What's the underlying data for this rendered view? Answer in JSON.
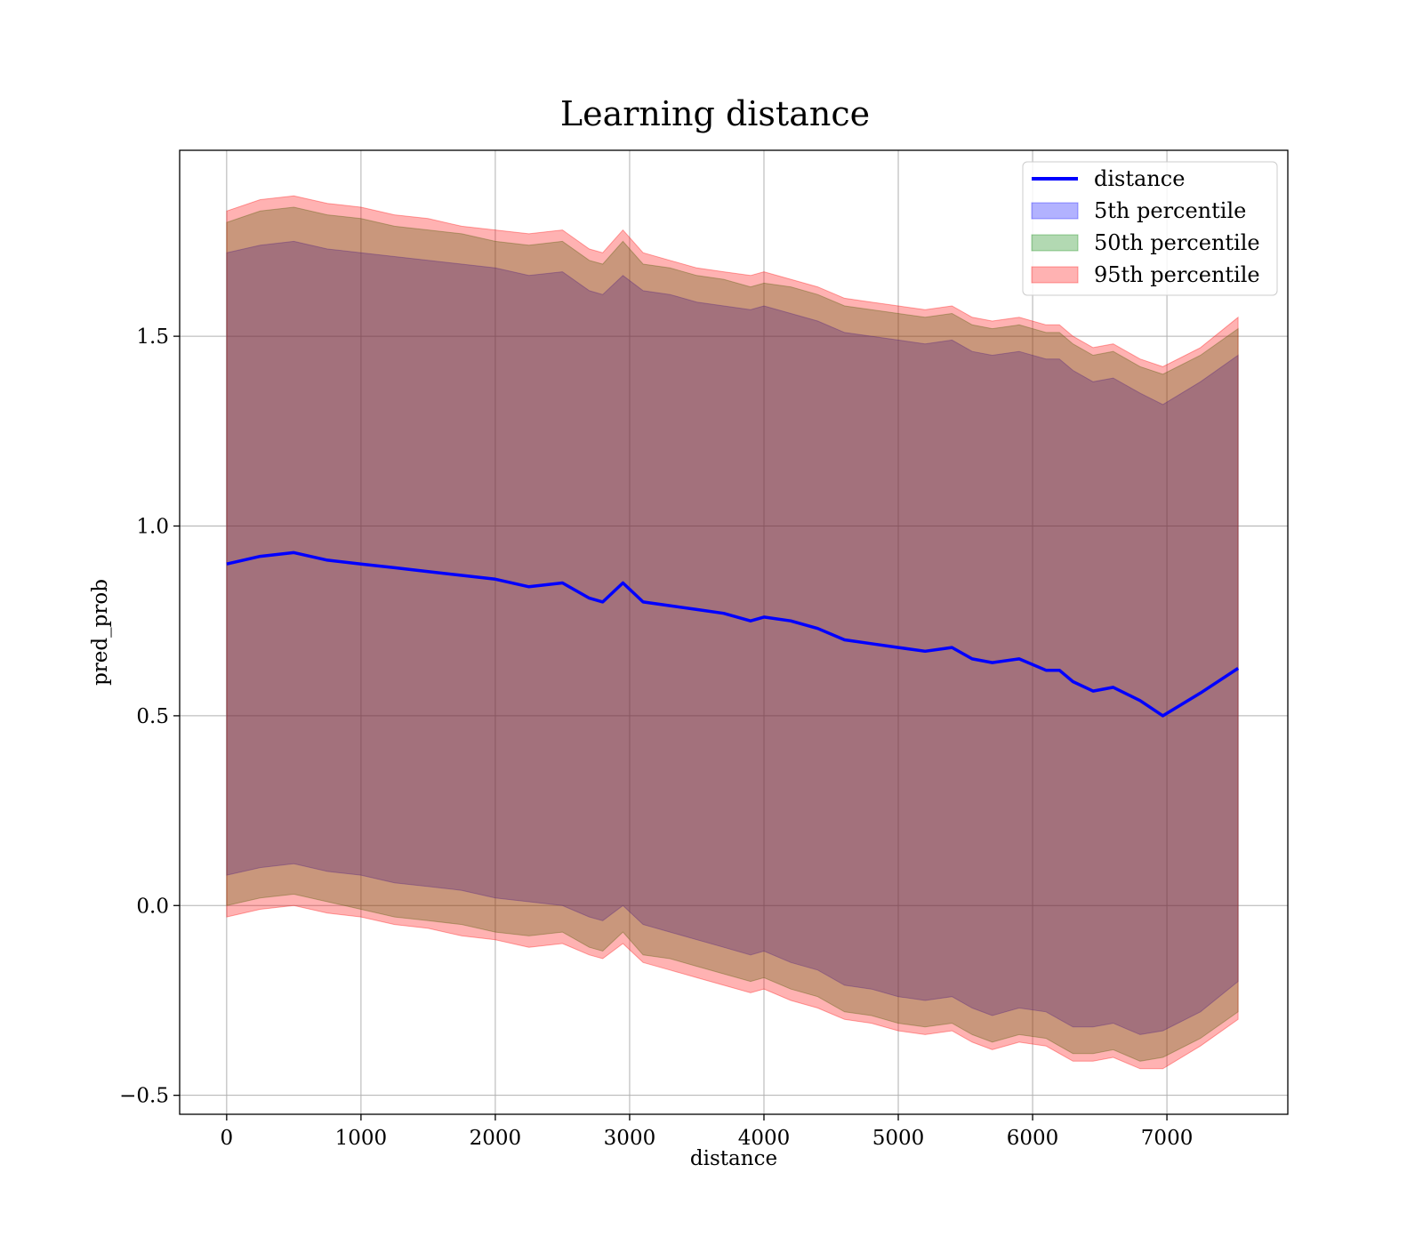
{
  "chart_data": {
    "type": "area",
    "title": "Learning distance",
    "xlabel": "distance",
    "ylabel": "pred_prob",
    "xlim": [
      -350,
      7900
    ],
    "ylim": [
      -0.55,
      1.99
    ],
    "xticks": [
      0,
      1000,
      2000,
      3000,
      4000,
      5000,
      6000,
      7000
    ],
    "xtick_labels": [
      "0",
      "1000",
      "2000",
      "3000",
      "4000",
      "5000",
      "6000",
      "7000"
    ],
    "yticks": [
      -0.5,
      0.0,
      0.5,
      1.0,
      1.5
    ],
    "ytick_labels": [
      "−0.5",
      "0.0",
      "0.5",
      "1.0",
      "1.5"
    ],
    "grid": true,
    "legend_position": "top-right",
    "x": [
      0,
      250,
      500,
      750,
      1000,
      1250,
      1500,
      1750,
      2000,
      2250,
      2500,
      2700,
      2800,
      2950,
      3100,
      3300,
      3500,
      3700,
      3900,
      4000,
      4200,
      4400,
      4600,
      4800,
      5000,
      5200,
      5400,
      5550,
      5700,
      5900,
      6100,
      6200,
      6300,
      6450,
      6600,
      6800,
      6970,
      7250,
      7530
    ],
    "series": [
      {
        "name": "distance",
        "kind": "line",
        "color": "#0000ff",
        "values": [
          0.9,
          0.92,
          0.93,
          0.91,
          0.9,
          0.89,
          0.88,
          0.87,
          0.86,
          0.84,
          0.85,
          0.81,
          0.8,
          0.85,
          0.8,
          0.79,
          0.78,
          0.77,
          0.75,
          0.76,
          0.75,
          0.73,
          0.7,
          0.69,
          0.68,
          0.67,
          0.68,
          0.65,
          0.64,
          0.65,
          0.62,
          0.62,
          0.59,
          0.565,
          0.575,
          0.54,
          0.5,
          0.56,
          0.625
        ]
      },
      {
        "name": "5th percentile",
        "kind": "band",
        "color": "#0000ff",
        "lower": [
          0.08,
          0.1,
          0.11,
          0.09,
          0.08,
          0.06,
          0.05,
          0.04,
          0.02,
          0.01,
          0.0,
          -0.03,
          -0.04,
          0.0,
          -0.05,
          -0.07,
          -0.09,
          -0.11,
          -0.13,
          -0.12,
          -0.15,
          -0.17,
          -0.21,
          -0.22,
          -0.24,
          -0.25,
          -0.24,
          -0.27,
          -0.29,
          -0.27,
          -0.28,
          -0.3,
          -0.32,
          -0.32,
          -0.31,
          -0.34,
          -0.33,
          -0.28,
          -0.2
        ],
        "upper": [
          1.72,
          1.74,
          1.75,
          1.73,
          1.72,
          1.71,
          1.7,
          1.69,
          1.68,
          1.66,
          1.67,
          1.62,
          1.61,
          1.66,
          1.62,
          1.61,
          1.59,
          1.58,
          1.57,
          1.58,
          1.56,
          1.54,
          1.51,
          1.5,
          1.49,
          1.48,
          1.49,
          1.46,
          1.45,
          1.46,
          1.44,
          1.44,
          1.41,
          1.38,
          1.39,
          1.35,
          1.32,
          1.38,
          1.45
        ]
      },
      {
        "name": "50th percentile",
        "kind": "band",
        "color": "#008000",
        "lower": [
          0.0,
          0.02,
          0.03,
          0.01,
          -0.01,
          -0.03,
          -0.04,
          -0.05,
          -0.07,
          -0.08,
          -0.07,
          -0.11,
          -0.12,
          -0.07,
          -0.13,
          -0.14,
          -0.16,
          -0.18,
          -0.2,
          -0.19,
          -0.22,
          -0.24,
          -0.28,
          -0.29,
          -0.31,
          -0.32,
          -0.31,
          -0.34,
          -0.36,
          -0.34,
          -0.35,
          -0.37,
          -0.39,
          -0.39,
          -0.38,
          -0.41,
          -0.4,
          -0.35,
          -0.28
        ],
        "upper": [
          1.8,
          1.83,
          1.84,
          1.82,
          1.81,
          1.79,
          1.78,
          1.77,
          1.75,
          1.74,
          1.75,
          1.7,
          1.69,
          1.75,
          1.69,
          1.68,
          1.66,
          1.65,
          1.63,
          1.64,
          1.63,
          1.61,
          1.58,
          1.57,
          1.56,
          1.55,
          1.56,
          1.53,
          1.52,
          1.53,
          1.51,
          1.51,
          1.48,
          1.45,
          1.46,
          1.42,
          1.4,
          1.45,
          1.52
        ]
      },
      {
        "name": "95th percentile",
        "kind": "band",
        "color": "#ff0000",
        "lower": [
          -0.03,
          -0.01,
          0.0,
          -0.02,
          -0.03,
          -0.05,
          -0.06,
          -0.08,
          -0.09,
          -0.11,
          -0.1,
          -0.13,
          -0.14,
          -0.1,
          -0.15,
          -0.17,
          -0.19,
          -0.21,
          -0.23,
          -0.22,
          -0.25,
          -0.27,
          -0.3,
          -0.31,
          -0.33,
          -0.34,
          -0.33,
          -0.36,
          -0.38,
          -0.36,
          -0.37,
          -0.39,
          -0.41,
          -0.41,
          -0.4,
          -0.43,
          -0.43,
          -0.37,
          -0.3
        ],
        "upper": [
          1.83,
          1.86,
          1.87,
          1.85,
          1.84,
          1.82,
          1.81,
          1.79,
          1.78,
          1.77,
          1.78,
          1.73,
          1.72,
          1.78,
          1.72,
          1.7,
          1.68,
          1.67,
          1.66,
          1.67,
          1.65,
          1.63,
          1.6,
          1.59,
          1.58,
          1.57,
          1.58,
          1.55,
          1.54,
          1.55,
          1.53,
          1.53,
          1.5,
          1.47,
          1.48,
          1.44,
          1.42,
          1.47,
          1.55
        ]
      }
    ]
  }
}
